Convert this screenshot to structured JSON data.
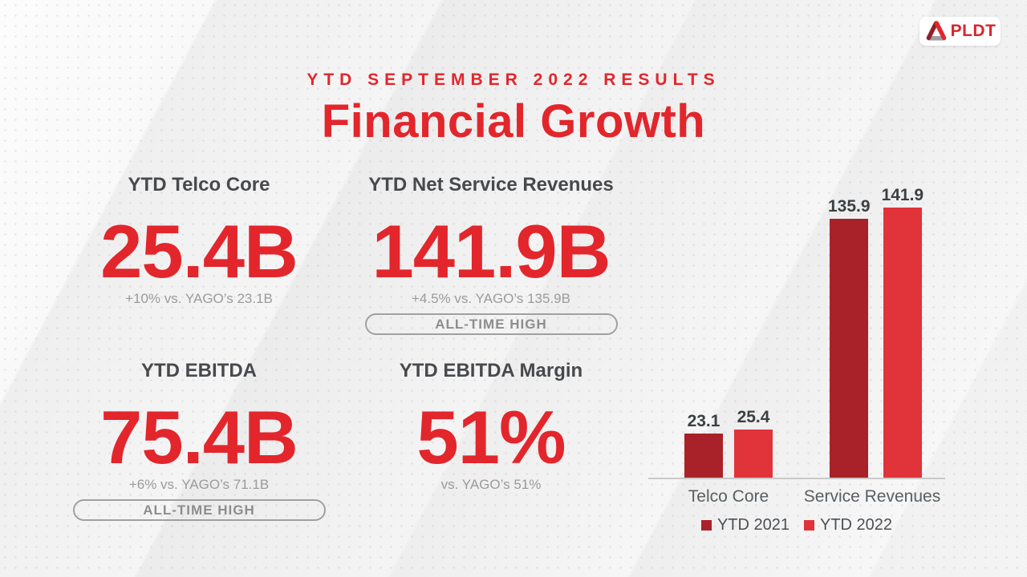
{
  "logo": {
    "brand": "PLDT"
  },
  "header": {
    "eyebrow": "YTD SEPTEMBER 2022 RESULTS",
    "title": "Financial Growth"
  },
  "kpis": [
    {
      "label": "YTD Telco Core",
      "value": "25.4B",
      "delta": "+10% vs. YAGO’s 23.1B",
      "badge": ""
    },
    {
      "label": "YTD Net Service Revenues",
      "value": "141.9B",
      "delta": "+4.5% vs. YAGO’s 135.9B",
      "badge": "ALL-TIME HIGH"
    },
    {
      "label": "YTD EBITDA",
      "value": "75.4B",
      "delta": "+6% vs. YAGO’s 71.1B",
      "badge": "ALL-TIME HIGH"
    },
    {
      "label": "YTD EBITDA Margin",
      "value": "51%",
      "delta": "vs. YAGO’s 51%",
      "badge": ""
    }
  ],
  "chart_data": {
    "type": "bar",
    "categories": [
      "Telco Core",
      "Service Revenues"
    ],
    "series": [
      {
        "name": "YTD 2021",
        "color": "#a92229",
        "values": [
          23.1,
          135.9
        ]
      },
      {
        "name": "YTD 2022",
        "color": "#e0333a",
        "values": [
          25.4,
          141.9
        ]
      }
    ],
    "title": "",
    "xlabel": "",
    "ylabel": "",
    "ylim": [
      0,
      150
    ],
    "grid": false,
    "legend_position": "bottom",
    "value_labels": true
  },
  "colors": {
    "brand_red": "#e2262c",
    "bar_2021_dark_red": "#a92229",
    "bar_2022_bright_red": "#e0333a",
    "heading_gray": "#47494c",
    "muted_gray": "#9b9b9b",
    "badge_gray": "#8d8d8d"
  }
}
